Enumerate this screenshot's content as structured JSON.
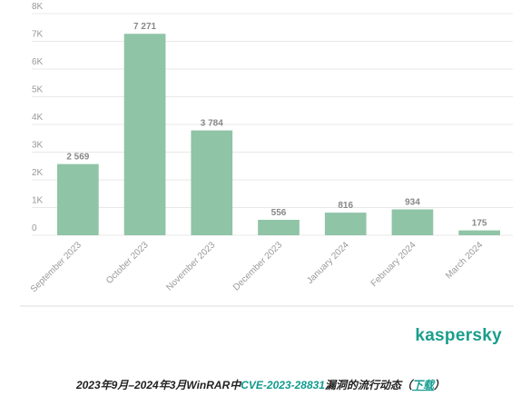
{
  "chart_data": {
    "type": "bar",
    "categories": [
      "September 2023",
      "October 2023",
      "November 2023",
      "December 2023",
      "January 2024",
      "February 2024",
      "March 2024"
    ],
    "values": [
      2569,
      7271,
      3784,
      556,
      816,
      934,
      175
    ],
    "value_labels": [
      "2 569",
      "7 271",
      "3 784",
      "556",
      "816",
      "934",
      "175"
    ],
    "color": "#8fc4a6",
    "ylim": [
      0,
      8000
    ],
    "yticks": [
      0,
      {
        "value": 1000,
        "label": "1K"
      },
      {
        "value": 2000,
        "label": "2K"
      },
      {
        "value": 3000,
        "label": "3K"
      },
      {
        "value": 4000,
        "label": "4K"
      },
      {
        "value": 5000,
        "label": "5K"
      },
      {
        "value": 6000,
        "label": "6K"
      },
      {
        "value": 7000,
        "label": "7K"
      },
      {
        "value": 8000,
        "label": "8K"
      }
    ],
    "grid": true,
    "logo": "kaspersky",
    "caption": [
      "2023年9月–2024年3月WinRAR中",
      "CVE-2023-28831",
      "漏洞的流行动态（",
      "下载",
      "）"
    ]
  }
}
